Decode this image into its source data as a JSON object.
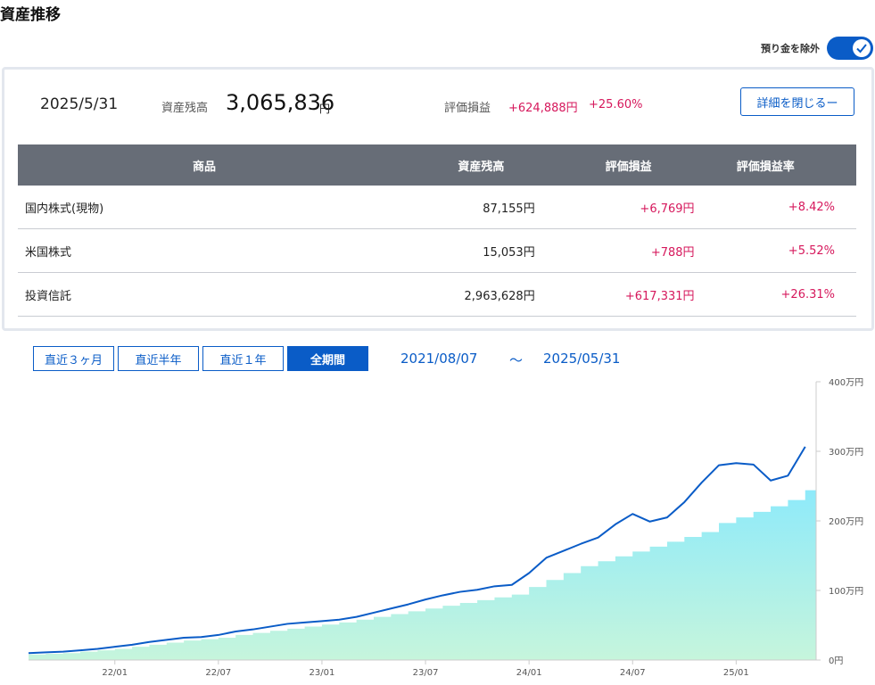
{
  "header": {
    "title": "資産推移"
  },
  "toggle": {
    "label": "預り金を除外",
    "on": true
  },
  "summary": {
    "date": "2025/5/31",
    "balance_label": "資産残高",
    "balance_value": "3,065,836",
    "balance_unit": "円",
    "pl_label": "評価損益",
    "pl_value": "+624,888円",
    "pl_pct": "+25.60%",
    "close_button": "詳細を閉じるー"
  },
  "table": {
    "headers": {
      "name": "商品",
      "balance": "資産残高",
      "pl": "評価損益",
      "rate": "評価損益率"
    },
    "rows": [
      {
        "name": "国内株式(現物)",
        "balance": "87,155円",
        "pl": "+6,769円",
        "rate": "+8.42%"
      },
      {
        "name": "米国株式",
        "balance": "15,053円",
        "pl": "+788円",
        "rate": "+5.52%"
      },
      {
        "name": "投資信託",
        "balance": "2,963,628円",
        "pl": "+617,331円",
        "rate": "+26.31%"
      }
    ]
  },
  "periods": {
    "p3m": "直近３ヶ月",
    "p6m": "直近半年",
    "p1y": "直近１年",
    "all": "全期間",
    "active": "all"
  },
  "range": {
    "start": "2021/08/07",
    "sep": "～",
    "end": "2025/05/31"
  },
  "colors": {
    "accent": "#0a5cc7",
    "positive": "#d6185c",
    "line": "#0a5cc7",
    "area_top": "#8eeafa",
    "area_bottom": "#c6f5dc"
  },
  "chart_data": {
    "type": "line",
    "x_ticks": [
      "22/01",
      "22/07",
      "23/01",
      "23/07",
      "24/01",
      "24/07",
      "25/01"
    ],
    "y_ticks": [
      "0円",
      "100万円",
      "200万円",
      "300万円",
      "400万円"
    ],
    "ylim": [
      0,
      4000000
    ],
    "x_start": "2021-08",
    "series": [
      {
        "name": "",
        "kind": "line",
        "points": [
          [
            "2021-08",
            100000
          ],
          [
            "2021-09",
            110000
          ],
          [
            "2021-10",
            120000
          ],
          [
            "2021-11",
            140000
          ],
          [
            "2021-12",
            160000
          ],
          [
            "2022-01",
            190000
          ],
          [
            "2022-02",
            220000
          ],
          [
            "2022-03",
            260000
          ],
          [
            "2022-04",
            290000
          ],
          [
            "2022-05",
            320000
          ],
          [
            "2022-06",
            330000
          ],
          [
            "2022-07",
            360000
          ],
          [
            "2022-08",
            410000
          ],
          [
            "2022-09",
            440000
          ],
          [
            "2022-10",
            480000
          ],
          [
            "2022-11",
            520000
          ],
          [
            "2022-12",
            540000
          ],
          [
            "2023-01",
            560000
          ],
          [
            "2023-02",
            580000
          ],
          [
            "2023-03",
            620000
          ],
          [
            "2023-04",
            680000
          ],
          [
            "2023-05",
            740000
          ],
          [
            "2023-06",
            800000
          ],
          [
            "2023-07",
            870000
          ],
          [
            "2023-08",
            930000
          ],
          [
            "2023-09",
            980000
          ],
          [
            "2023-10",
            1010000
          ],
          [
            "2023-11",
            1060000
          ],
          [
            "2023-12",
            1080000
          ],
          [
            "2024-01",
            1250000
          ],
          [
            "2024-02",
            1470000
          ],
          [
            "2024-03",
            1570000
          ],
          [
            "2024-04",
            1670000
          ],
          [
            "2024-05",
            1760000
          ],
          [
            "2024-06",
            1950000
          ],
          [
            "2024-07",
            2100000
          ],
          [
            "2024-08",
            1990000
          ],
          [
            "2024-09",
            2050000
          ],
          [
            "2024-10",
            2270000
          ],
          [
            "2024-11",
            2550000
          ],
          [
            "2024-12",
            2800000
          ],
          [
            "2025-01",
            2830000
          ],
          [
            "2025-02",
            2810000
          ],
          [
            "2025-03",
            2580000
          ],
          [
            "2025-04",
            2650000
          ],
          [
            "2025-05",
            3066000
          ]
        ]
      },
      {
        "name": "",
        "kind": "area",
        "points": [
          [
            "2021-08",
            80000
          ],
          [
            "2021-09",
            90000
          ],
          [
            "2021-10",
            100000
          ],
          [
            "2021-11",
            120000
          ],
          [
            "2021-12",
            140000
          ],
          [
            "2022-01",
            160000
          ],
          [
            "2022-02",
            190000
          ],
          [
            "2022-03",
            220000
          ],
          [
            "2022-04",
            250000
          ],
          [
            "2022-05",
            280000
          ],
          [
            "2022-06",
            300000
          ],
          [
            "2022-07",
            320000
          ],
          [
            "2022-08",
            360000
          ],
          [
            "2022-09",
            390000
          ],
          [
            "2022-10",
            420000
          ],
          [
            "2022-11",
            450000
          ],
          [
            "2022-12",
            480000
          ],
          [
            "2023-01",
            510000
          ],
          [
            "2023-02",
            540000
          ],
          [
            "2023-03",
            580000
          ],
          [
            "2023-04",
            620000
          ],
          [
            "2023-05",
            660000
          ],
          [
            "2023-06",
            700000
          ],
          [
            "2023-07",
            740000
          ],
          [
            "2023-08",
            780000
          ],
          [
            "2023-09",
            820000
          ],
          [
            "2023-10",
            860000
          ],
          [
            "2023-11",
            900000
          ],
          [
            "2023-12",
            940000
          ],
          [
            "2024-01",
            1050000
          ],
          [
            "2024-02",
            1150000
          ],
          [
            "2024-03",
            1250000
          ],
          [
            "2024-04",
            1350000
          ],
          [
            "2024-05",
            1420000
          ],
          [
            "2024-06",
            1490000
          ],
          [
            "2024-07",
            1560000
          ],
          [
            "2024-08",
            1630000
          ],
          [
            "2024-09",
            1700000
          ],
          [
            "2024-10",
            1770000
          ],
          [
            "2024-11",
            1840000
          ],
          [
            "2024-12",
            1970000
          ],
          [
            "2025-01",
            2050000
          ],
          [
            "2025-02",
            2130000
          ],
          [
            "2025-03",
            2210000
          ],
          [
            "2025-04",
            2300000
          ],
          [
            "2025-05",
            2440000
          ]
        ]
      }
    ]
  }
}
